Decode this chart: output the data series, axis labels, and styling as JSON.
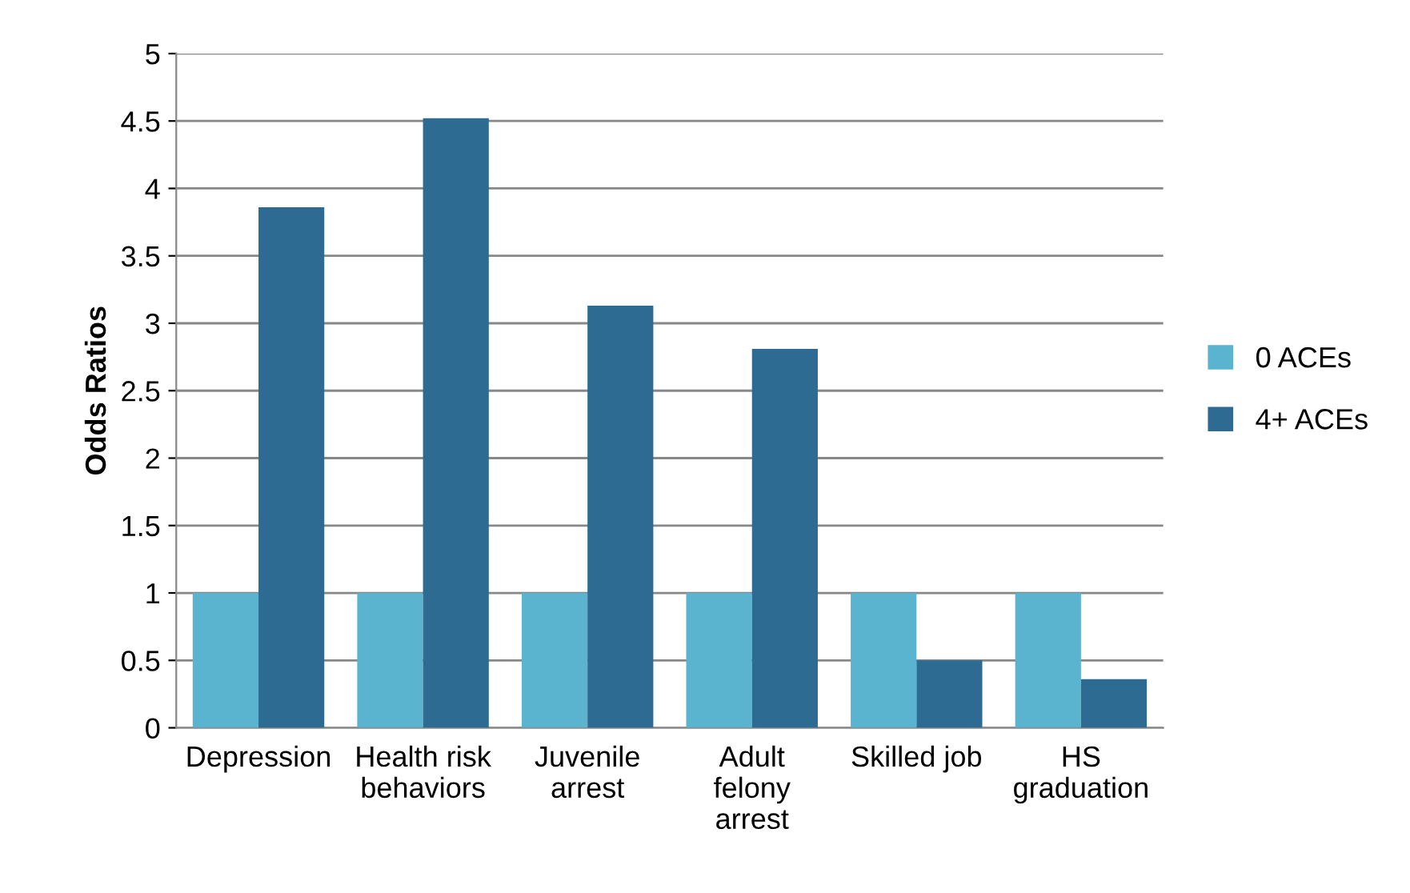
{
  "chart_data": {
    "type": "bar",
    "ylabel": "Odds Ratios",
    "categories": [
      "Depression",
      "Health risk\nbehaviors",
      "Juvenile\narrest",
      "Adult\nfelony\narrest",
      "Skilled job",
      "HS\ngraduation"
    ],
    "series": [
      {
        "name": "0 ACEs",
        "color": "#5ab4cf",
        "values": [
          1,
          1,
          1,
          1,
          1,
          1
        ]
      },
      {
        "name": "4+ ACEs",
        "color": "#2e6b92",
        "values": [
          3.86,
          4.52,
          3.13,
          2.81,
          0.5,
          0.36
        ]
      }
    ],
    "ylim": [
      0,
      5
    ],
    "yticks": [
      0,
      0.5,
      1,
      1.5,
      2,
      2.5,
      3,
      3.5,
      4,
      4.5,
      5
    ],
    "grid": "y",
    "legend": "right"
  }
}
